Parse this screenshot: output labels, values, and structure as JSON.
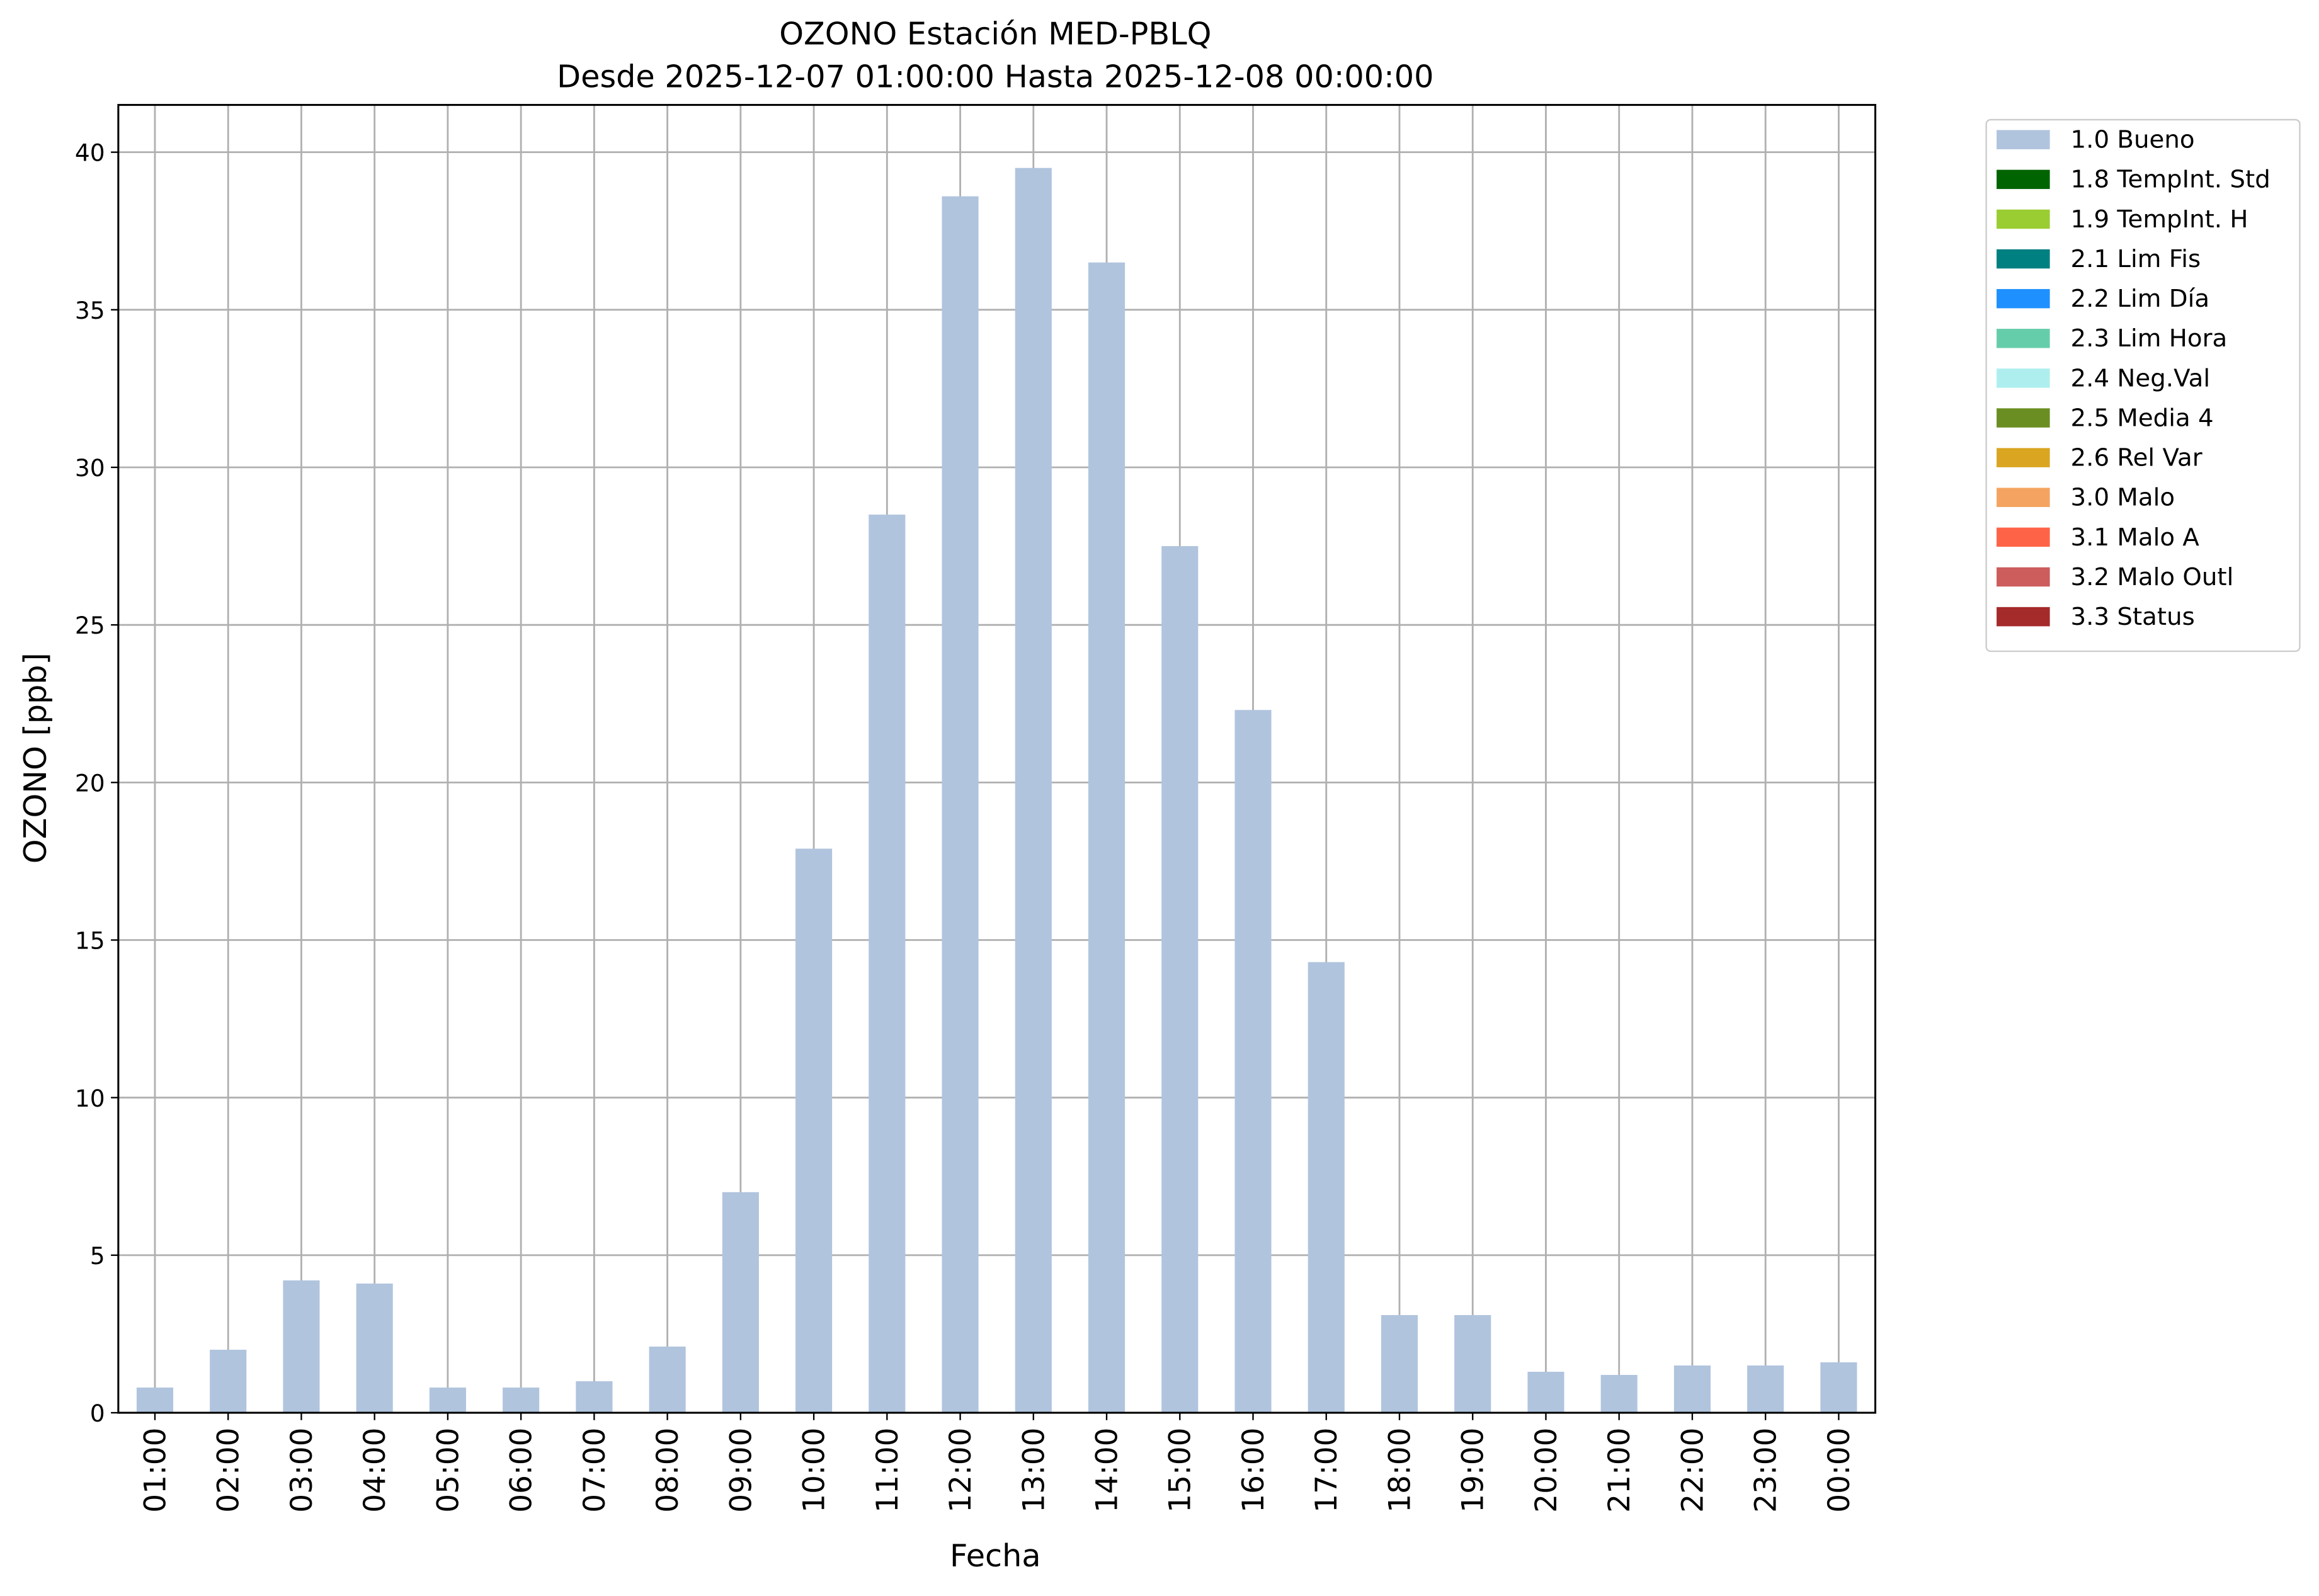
{
  "chart_data": {
    "type": "bar",
    "title": "OZONO Estación MED-PBLQ",
    "subtitle": "Desde 2025-12-07 01:00:00 Hasta 2025-12-08 00:00:00",
    "x_label": "Fecha",
    "y_label": "OZONO [ppb]",
    "categories": [
      "01:00",
      "02:00",
      "03:00",
      "04:00",
      "05:00",
      "06:00",
      "07:00",
      "08:00",
      "09:00",
      "10:00",
      "11:00",
      "12:00",
      "13:00",
      "14:00",
      "15:00",
      "16:00",
      "17:00",
      "18:00",
      "19:00",
      "20:00",
      "21:00",
      "22:00",
      "23:00",
      "00:00"
    ],
    "series": [
      {
        "name": "1.0 Bueno",
        "color": "#b0c4de",
        "values": [
          0.8,
          2.0,
          4.2,
          4.1,
          0.8,
          0.8,
          1.0,
          2.1,
          7.0,
          17.9,
          28.5,
          38.6,
          39.5,
          36.5,
          27.5,
          22.3,
          14.3,
          3.1,
          3.1,
          1.3,
          1.2,
          1.5,
          1.5,
          1.6
        ]
      }
    ],
    "legend_entries": [
      {
        "name": "1.8 TempInt. Std",
        "color": "#006400"
      },
      {
        "name": "1.9 TempInt. H",
        "color": "#9acd32"
      },
      {
        "name": "2.1 Lim Fis",
        "color": "#008080"
      },
      {
        "name": "2.2 Lim Día",
        "color": "#1e90ff"
      },
      {
        "name": "2.3 Lim Hora",
        "color": "#66cdaa"
      },
      {
        "name": "2.4 Neg.Val",
        "color": "#afeeee"
      },
      {
        "name": "2.5 Media 4",
        "color": "#6b8e23"
      },
      {
        "name": "2.6 Rel Var",
        "color": "#daa520"
      },
      {
        "name": "3.0 Malo",
        "color": "#f4a460"
      },
      {
        "name": "3.1 Malo A",
        "color": "#ff6347"
      },
      {
        "name": "3.2 Malo Outl",
        "color": "#cd5c5c"
      },
      {
        "name": "3.3 Status",
        "color": "#a52a2a"
      }
    ],
    "ylim": [
      0,
      41.5
    ],
    "yticks": [
      0,
      5,
      10,
      15,
      20,
      25,
      30,
      35,
      40
    ],
    "grid": true,
    "legend_position": "outside-upper-right"
  }
}
